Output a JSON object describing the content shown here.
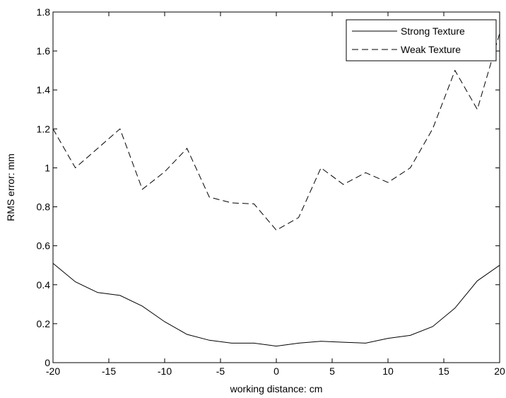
{
  "chart_data": {
    "type": "line",
    "title": "",
    "xlabel": "working distance: cm",
    "ylabel": "RMS error: mm",
    "xlim": [
      -20,
      20
    ],
    "ylim": [
      0,
      1.8
    ],
    "xticks": [
      -20,
      -15,
      -10,
      -5,
      0,
      5,
      10,
      15,
      20
    ],
    "yticks": [
      0,
      0.2,
      0.4,
      0.6,
      0.8,
      1,
      1.2,
      1.4,
      1.6,
      1.8
    ],
    "grid": false,
    "legend_position": "top-right",
    "x": [
      -20,
      -18,
      -16,
      -14,
      -12,
      -10,
      -8,
      -6,
      -4,
      -2,
      0,
      2,
      4,
      6,
      8,
      10,
      12,
      14,
      16,
      18,
      20
    ],
    "series": [
      {
        "name": "Strong Texture",
        "style": "solid",
        "color": "#000000",
        "values": [
          0.51,
          0.415,
          0.36,
          0.345,
          0.29,
          0.21,
          0.145,
          0.115,
          0.1,
          0.1,
          0.085,
          0.1,
          0.11,
          0.105,
          0.1,
          0.125,
          0.14,
          0.185,
          0.28,
          0.42,
          0.5
        ]
      },
      {
        "name": "Weak Texture",
        "style": "dashed",
        "color": "#000000",
        "values": [
          1.2,
          1.0,
          1.1,
          1.2,
          0.89,
          0.98,
          1.1,
          0.85,
          0.82,
          0.815,
          0.68,
          0.745,
          1.0,
          0.915,
          0.975,
          0.925,
          1.0,
          1.2,
          1.5,
          1.3,
          1.69
        ]
      }
    ]
  }
}
